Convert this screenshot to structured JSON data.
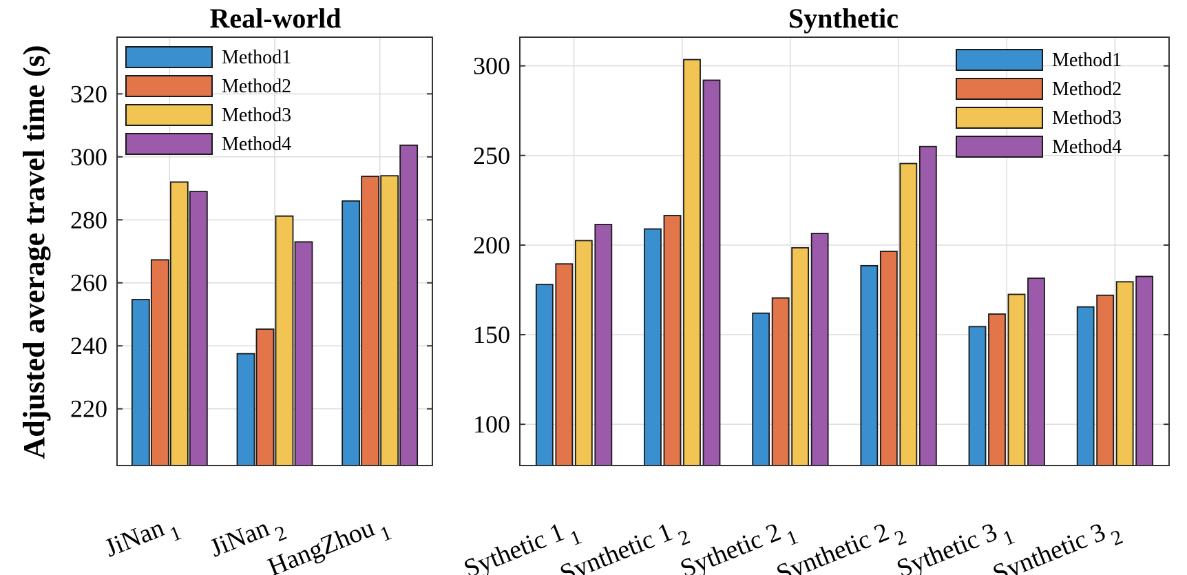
{
  "ylabel": "Adjusted average travel time (s)",
  "colors": {
    "Method1": "#3a8fcf",
    "Method2": "#e3754a",
    "Method3": "#f1c453",
    "Method4": "#9c5aaa"
  },
  "chart_data": [
    {
      "type": "bar",
      "title": "Real-world",
      "categories": [
        {
          "base": "JiNan",
          "sub": "1"
        },
        {
          "base": "JiNan",
          "sub": "2"
        },
        {
          "base": "HangZhou",
          "sub": "1"
        }
      ],
      "series": [
        {
          "name": "Method1",
          "values": [
            254.7,
            237.5,
            286
          ]
        },
        {
          "name": "Method2",
          "values": [
            267.3,
            245.3,
            293.8
          ]
        },
        {
          "name": "Method3",
          "values": [
            292,
            281.2,
            294
          ]
        },
        {
          "name": "Method4",
          "values": [
            289,
            273,
            303.7
          ]
        }
      ],
      "ylim": [
        202,
        338
      ],
      "yticks": [
        220,
        240,
        260,
        280,
        300,
        320
      ],
      "grid": true,
      "legend_location": "top-left"
    },
    {
      "type": "bar",
      "title": "Synthetic",
      "categories": [
        {
          "base": "Sythetic 1",
          "sub": "1"
        },
        {
          "base": "Synthetic 1",
          "sub": "2"
        },
        {
          "base": "Sythetic 2",
          "sub": "1"
        },
        {
          "base": "Synthetic 2",
          "sub": "2"
        },
        {
          "base": "Sythetic 3",
          "sub": "1"
        },
        {
          "base": "Synthetic 3",
          "sub": "2"
        }
      ],
      "series": [
        {
          "name": "Method1",
          "values": [
            178,
            209,
            162,
            188.5,
            154.5,
            165.5
          ]
        },
        {
          "name": "Method2",
          "values": [
            189.5,
            216.5,
            170.5,
            196.5,
            161.5,
            172
          ]
        },
        {
          "name": "Method3",
          "values": [
            202.5,
            303.5,
            198.5,
            245.5,
            172.5,
            179.5
          ]
        },
        {
          "name": "Method4",
          "values": [
            211.5,
            292,
            206.5,
            255,
            181.5,
            182.5
          ]
        }
      ],
      "ylim": [
        77,
        316
      ],
      "yticks": [
        100,
        150,
        200,
        250,
        300
      ],
      "grid": true,
      "legend_location": "top-right"
    }
  ]
}
